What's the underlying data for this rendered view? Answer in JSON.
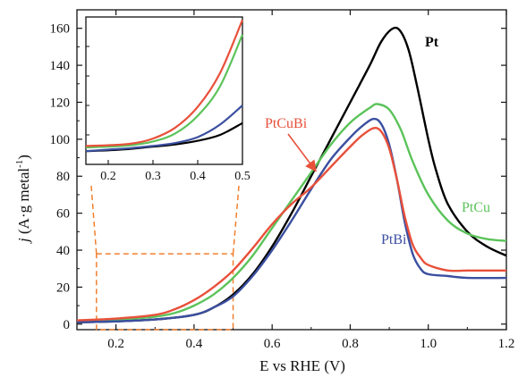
{
  "chart_data": {
    "type": "line",
    "xlabel": "E vs RHE (V)",
    "ylabel_prefix": "j",
    "ylabel_main": " (A·g metal",
    "ylabel_sup": "-1",
    "ylabel_suffix": ")",
    "xlim": [
      0.1,
      1.2
    ],
    "ylim": [
      -3,
      170
    ],
    "x_ticks": [
      0.2,
      0.4,
      0.6,
      0.8,
      1.0,
      1.2
    ],
    "x_tick_labels": [
      "0.2",
      "0.4",
      "0.6",
      "0.8",
      "1.0",
      "1.2"
    ],
    "y_ticks": [
      0,
      20,
      40,
      60,
      80,
      100,
      120,
      140,
      160
    ],
    "y_tick_labels": [
      "0",
      "20",
      "40",
      "60",
      "80",
      "100",
      "120",
      "140",
      "160"
    ],
    "grid": false,
    "series": [
      {
        "name": "Pt",
        "color": "#000000",
        "points": [
          [
            0.1,
            1
          ],
          [
            0.2,
            1.5
          ],
          [
            0.3,
            2.5
          ],
          [
            0.4,
            5
          ],
          [
            0.45,
            9
          ],
          [
            0.5,
            16
          ],
          [
            0.55,
            27
          ],
          [
            0.6,
            42
          ],
          [
            0.65,
            60
          ],
          [
            0.7,
            80
          ],
          [
            0.75,
            100
          ],
          [
            0.8,
            120
          ],
          [
            0.85,
            140
          ],
          [
            0.88,
            153
          ],
          [
            0.91,
            160
          ],
          [
            0.93,
            158
          ],
          [
            0.95,
            148
          ],
          [
            0.97,
            130
          ],
          [
            1.0,
            100
          ],
          [
            1.02,
            83
          ],
          [
            1.05,
            65
          ],
          [
            1.1,
            50
          ],
          [
            1.15,
            42
          ],
          [
            1.2,
            37
          ]
        ]
      },
      {
        "name": "PtCu",
        "color": "#5cc35a",
        "points": [
          [
            0.1,
            1.5
          ],
          [
            0.2,
            2.5
          ],
          [
            0.3,
            4
          ],
          [
            0.35,
            6
          ],
          [
            0.4,
            10
          ],
          [
            0.45,
            16
          ],
          [
            0.5,
            25
          ],
          [
            0.55,
            37
          ],
          [
            0.6,
            52
          ],
          [
            0.65,
            67
          ],
          [
            0.7,
            82
          ],
          [
            0.75,
            97
          ],
          [
            0.8,
            109
          ],
          [
            0.85,
            117
          ],
          [
            0.87,
            119
          ],
          [
            0.9,
            116
          ],
          [
            0.93,
            105
          ],
          [
            0.96,
            88
          ],
          [
            1.0,
            70
          ],
          [
            1.05,
            56
          ],
          [
            1.1,
            49
          ],
          [
            1.15,
            46
          ],
          [
            1.2,
            45
          ]
        ]
      },
      {
        "name": "PtBi",
        "color": "#3b4fa0",
        "points": [
          [
            0.1,
            1
          ],
          [
            0.2,
            1.5
          ],
          [
            0.3,
            2.5
          ],
          [
            0.4,
            5
          ],
          [
            0.45,
            9
          ],
          [
            0.5,
            15
          ],
          [
            0.55,
            26
          ],
          [
            0.6,
            40
          ],
          [
            0.65,
            56
          ],
          [
            0.7,
            73
          ],
          [
            0.75,
            89
          ],
          [
            0.8,
            101
          ],
          [
            0.83,
            107
          ],
          [
            0.86,
            111
          ],
          [
            0.88,
            108
          ],
          [
            0.9,
            97
          ],
          [
            0.92,
            78
          ],
          [
            0.94,
            55
          ],
          [
            0.96,
            38
          ],
          [
            0.98,
            30
          ],
          [
            1.0,
            27
          ],
          [
            1.05,
            26
          ],
          [
            1.1,
            25
          ],
          [
            1.2,
            25
          ]
        ]
      },
      {
        "name": "PtCuBi",
        "color": "#e8503a",
        "points": [
          [
            0.1,
            2
          ],
          [
            0.2,
            3
          ],
          [
            0.3,
            5
          ],
          [
            0.35,
            8
          ],
          [
            0.4,
            13
          ],
          [
            0.45,
            20
          ],
          [
            0.5,
            29
          ],
          [
            0.55,
            41
          ],
          [
            0.6,
            54
          ],
          [
            0.65,
            65
          ],
          [
            0.7,
            74
          ],
          [
            0.75,
            85
          ],
          [
            0.8,
            96
          ],
          [
            0.83,
            102
          ],
          [
            0.86,
            106
          ],
          [
            0.88,
            104
          ],
          [
            0.9,
            95
          ],
          [
            0.92,
            78
          ],
          [
            0.94,
            58
          ],
          [
            0.96,
            43
          ],
          [
            0.98,
            36
          ],
          [
            1.0,
            32
          ],
          [
            1.05,
            29
          ],
          [
            1.1,
            29
          ],
          [
            1.15,
            29
          ],
          [
            1.2,
            29
          ]
        ]
      }
    ],
    "annotations": {
      "zoom_box": {
        "x": [
          0.15,
          0.5
        ],
        "y": [
          -3,
          38
        ],
        "color": "#f08030"
      }
    },
    "inset": {
      "xlim": [
        0.15,
        0.5
      ],
      "ylim": [
        0,
        1
      ],
      "x_ticks": [
        0.2,
        0.3,
        0.4,
        0.5
      ],
      "x_tick_labels": [
        "0.2",
        "0.3",
        "0.4",
        "0.5"
      ],
      "series": [
        {
          "name": "Pt",
          "color": "#000000",
          "points": [
            [
              0.15,
              0.09
            ],
            [
              0.2,
              0.095
            ],
            [
              0.25,
              0.105
            ],
            [
              0.3,
              0.12
            ],
            [
              0.35,
              0.135
            ],
            [
              0.4,
              0.16
            ],
            [
              0.45,
              0.2
            ],
            [
              0.5,
              0.28
            ]
          ]
        },
        {
          "name": "PtBi",
          "color": "#3b4fa0",
          "points": [
            [
              0.15,
              0.09
            ],
            [
              0.2,
              0.1
            ],
            [
              0.25,
              0.11
            ],
            [
              0.3,
              0.125
            ],
            [
              0.35,
              0.145
            ],
            [
              0.4,
              0.185
            ],
            [
              0.45,
              0.27
            ],
            [
              0.5,
              0.4
            ]
          ]
        },
        {
          "name": "PtCu",
          "color": "#5cc35a",
          "points": [
            [
              0.15,
              0.115
            ],
            [
              0.2,
              0.12
            ],
            [
              0.25,
              0.13
            ],
            [
              0.3,
              0.155
            ],
            [
              0.35,
              0.21
            ],
            [
              0.4,
              0.33
            ],
            [
              0.45,
              0.53
            ],
            [
              0.5,
              0.88
            ]
          ]
        },
        {
          "name": "PtCuBi",
          "color": "#e8503a",
          "points": [
            [
              0.15,
              0.125
            ],
            [
              0.2,
              0.13
            ],
            [
              0.25,
              0.14
            ],
            [
              0.3,
              0.175
            ],
            [
              0.35,
              0.25
            ],
            [
              0.4,
              0.39
            ],
            [
              0.45,
              0.62
            ],
            [
              0.5,
              0.98
            ]
          ]
        }
      ]
    }
  }
}
